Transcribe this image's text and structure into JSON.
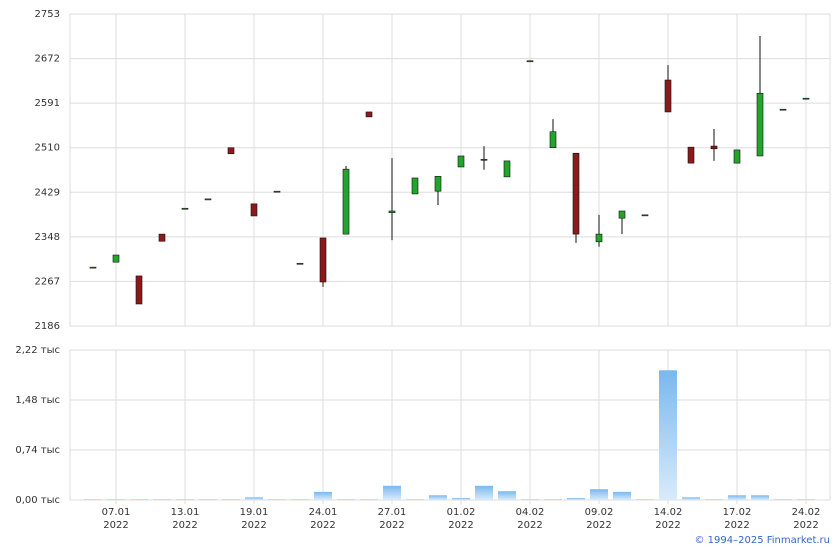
{
  "chart_data": {
    "type": "candlestick",
    "categories": [
      null,
      "07.01\n2022",
      null,
      null,
      "13.01\n2022",
      null,
      null,
      "19.01\n2022",
      null,
      null,
      "24.01\n2022",
      null,
      null,
      "27.01\n2022",
      null,
      null,
      "01.02\n2022",
      null,
      null,
      "04.02\n2022",
      null,
      null,
      "09.02\n2022",
      null,
      null,
      "14.02\n2022",
      null,
      null,
      "17.02\n2022",
      null,
      null,
      "24.02\n2022"
    ],
    "open": [
      2293,
      2302,
      2277,
      2353,
      2400,
      2417,
      2510,
      2408,
      2431,
      2300,
      2346,
      2353,
      2575,
      2392,
      2426,
      2431,
      2475,
      2489,
      2457,
      2668,
      2510,
      2500,
      2339,
      2382,
      2388,
      2633,
      2511,
      2513,
      2482,
      2495,
      2580,
      2600
    ],
    "high": [
      2293,
      2315,
      2277,
      2353,
      2400,
      2417,
      2510,
      2408,
      2431,
      2300,
      2346,
      2477,
      2575,
      2491,
      2455,
      2458,
      2495,
      2513,
      2486,
      2668,
      2562,
      2500,
      2388,
      2395,
      2388,
      2660,
      2511,
      2544,
      2506,
      2713,
      2580,
      2600
    ],
    "low": [
      2293,
      2302,
      2226,
      2340,
      2400,
      2417,
      2499,
      2386,
      2431,
      2300,
      2257,
      2353,
      2566,
      2342,
      2426,
      2406,
      2475,
      2470,
      2457,
      2668,
      2510,
      2337,
      2330,
      2353,
      2388,
      2575,
      2482,
      2486,
      2482,
      2495,
      2580,
      2600
    ],
    "close": [
      2293,
      2315,
      2226,
      2340,
      2400,
      2417,
      2499,
      2386,
      2431,
      2300,
      2266,
      2471,
      2566,
      2395,
      2455,
      2458,
      2495,
      2489,
      2486,
      2668,
      2539,
      2353,
      2353,
      2395,
      2388,
      2575,
      2482,
      2508,
      2506,
      2609,
      2580,
      2600
    ],
    "volume": [
      0.01,
      0.01,
      0.01,
      0.01,
      0.01,
      0.01,
      0.01,
      0.04,
      0.01,
      0.01,
      0.12,
      0.01,
      0.01,
      0.21,
      0.01,
      0.07,
      0.03,
      0.21,
      0.13,
      0.01,
      0.01,
      0.03,
      0.16,
      0.12,
      0.01,
      1.92,
      0.04,
      0.01,
      0.07,
      0.07,
      0.01,
      0.01
    ],
    "up_color": "#22a52a",
    "down_color": "#8b1a1a",
    "volume_color": "#7ab8ee",
    "ylim": [
      2186,
      2753
    ],
    "yticks": [
      2186,
      2267,
      2348,
      2429,
      2510,
      2591,
      2672,
      2753
    ],
    "volume_ylim": [
      0,
      2.22
    ],
    "volume_yticks": [
      {
        "value": 0,
        "label": "0,00 тыс"
      },
      {
        "value": 0.74,
        "label": "0,74 тыс"
      },
      {
        "value": 1.48,
        "label": "1,48 тыс"
      },
      {
        "value": 2.22,
        "label": "2,22 тыс"
      }
    ],
    "grid": true,
    "credit": "© 1994–2025 Finmarket.ru"
  }
}
